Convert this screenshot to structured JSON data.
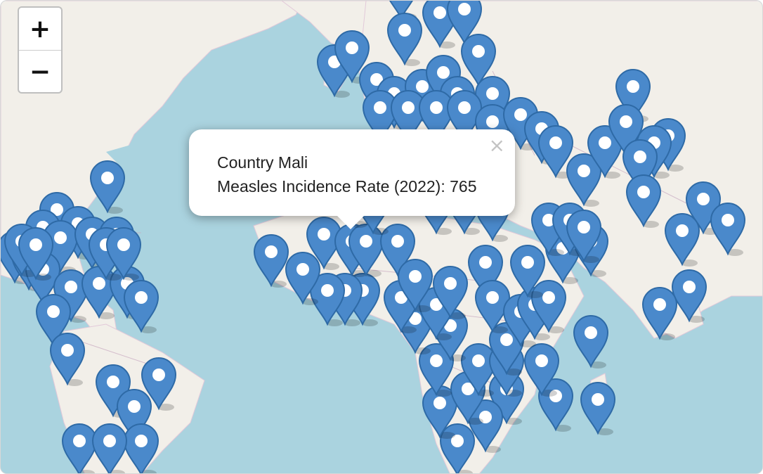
{
  "zoom": {
    "in_label": "+",
    "out_label": "−"
  },
  "popup": {
    "country_line": "Country Mali",
    "value_line": "Measles Incidence Rate (2022): 765",
    "close_label": "×"
  },
  "colors": {
    "water": "#aad3df",
    "land": "#f2efe9",
    "marker": "#4a89cb",
    "marker_stroke": "#2e6aa6"
  },
  "icons": {
    "marker": "map-pin-icon",
    "close": "close-icon"
  }
}
